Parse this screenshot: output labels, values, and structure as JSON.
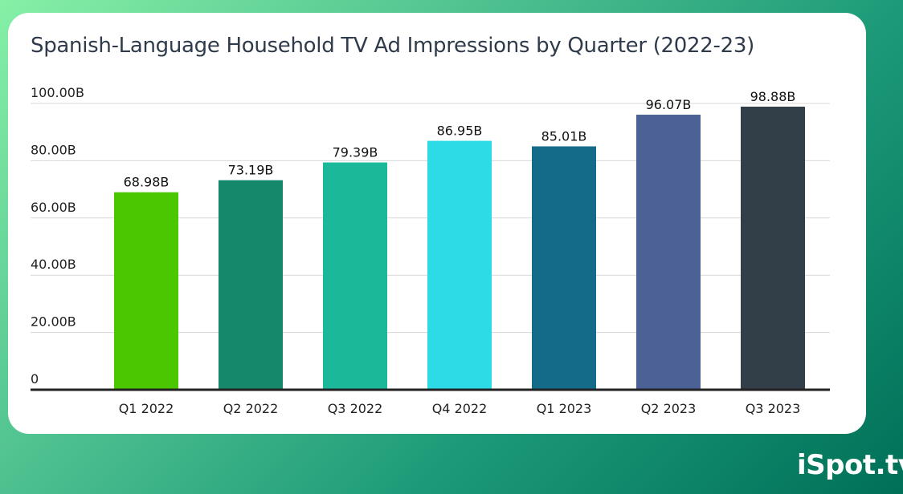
{
  "brand": "iSpot.tv",
  "chart_data": {
    "type": "bar",
    "title": "Spanish-Language Household TV Ad Impressions by Quarter (2022-23)",
    "categories": [
      "Q1 2022",
      "Q2 2022",
      "Q3 2022",
      "Q4 2022",
      "Q1 2023",
      "Q2 2023",
      "Q3 2023"
    ],
    "values": [
      68.98,
      73.19,
      79.39,
      86.95,
      85.01,
      96.07,
      98.88
    ],
    "data_labels": [
      "68.98B",
      "73.19B",
      "79.39B",
      "86.95B",
      "85.01B",
      "96.07B",
      "98.88B"
    ],
    "colors": [
      "#4ac700",
      "#15876b",
      "#1cb89a",
      "#2ddbe6",
      "#136b89",
      "#4c6195",
      "#323f48"
    ],
    "ylim": [
      0,
      100
    ],
    "yticks": [
      0,
      20,
      40,
      60,
      80,
      100
    ],
    "ytick_labels": [
      "0",
      "20.00B",
      "40.00B",
      "60.00B",
      "80.00B",
      "100.00B"
    ],
    "xlabel": "",
    "ylabel": "",
    "grid": true,
    "unit": "B"
  }
}
